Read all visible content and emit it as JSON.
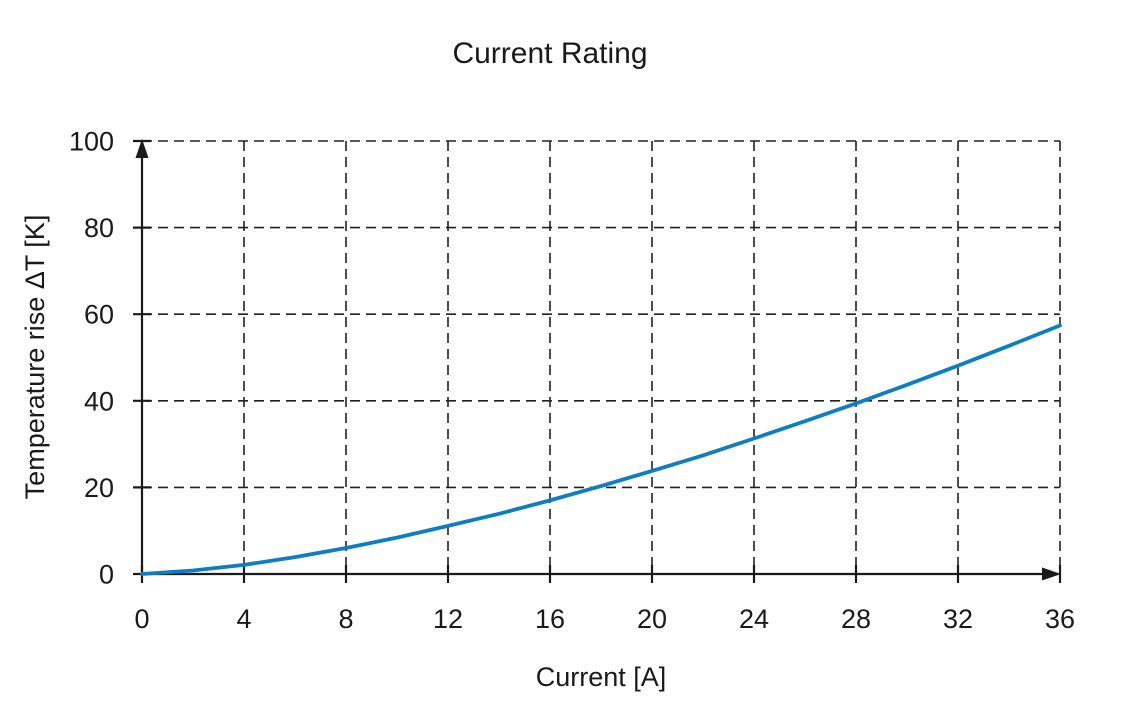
{
  "chart_data": {
    "type": "line",
    "title": "Current Rating",
    "xlabel": "Current [A]",
    "ylabel": "Temperature rise ΔT [K]",
    "xlim": [
      0,
      36
    ],
    "ylim": [
      0,
      100
    ],
    "x_ticks": [
      0,
      4,
      8,
      12,
      16,
      20,
      24,
      28,
      32,
      36
    ],
    "y_ticks": [
      0,
      20,
      40,
      60,
      80,
      100
    ],
    "grid": "dashed",
    "legend": "none",
    "axis_color": "#1a1a1a",
    "grid_color": "#222222",
    "background_color": "#ffffff",
    "series": [
      {
        "name": "temperature-rise-vs-current",
        "color": "#0f7ec0",
        "x": [
          0,
          2,
          4,
          6,
          8,
          10,
          12,
          14,
          16,
          18,
          20,
          22,
          24,
          26,
          28,
          30,
          32,
          34,
          36
        ],
        "y": [
          0,
          0.8,
          2.1,
          3.9,
          6.0,
          8.4,
          11.1,
          13.9,
          17.0,
          20.3,
          23.8,
          27.4,
          31.3,
          35.3,
          39.4,
          43.7,
          48.1,
          52.7,
          57.4
        ]
      }
    ]
  }
}
